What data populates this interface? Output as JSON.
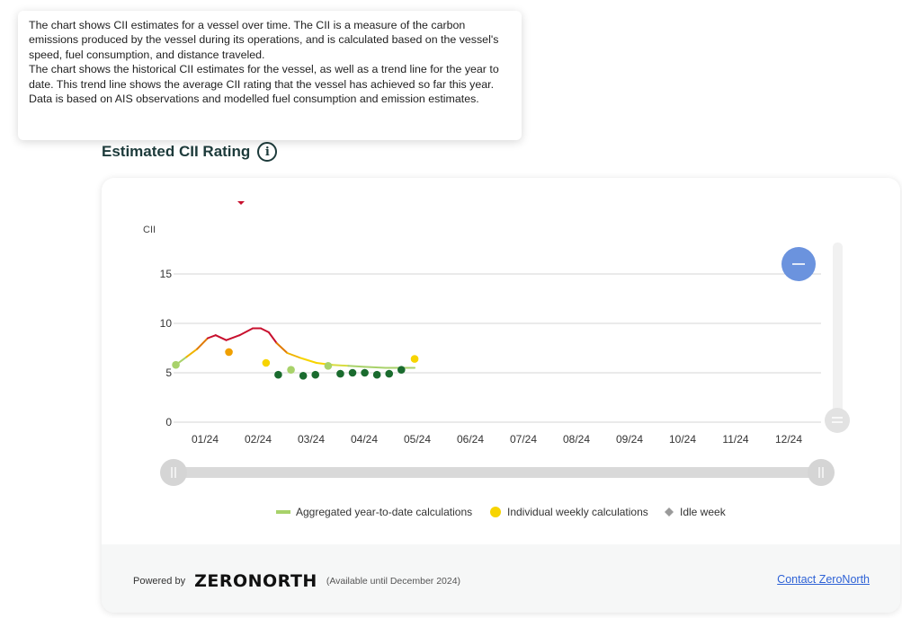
{
  "tooltip": {
    "para1": "The chart shows CII estimates for a vessel over time. The CII is a measure of the carbon emissions produced by the vessel during its operations, and is calculated based on the vessel's speed, fuel consumption, and distance traveled.",
    "para2": "The chart shows the historical CII estimates for the vessel, as well as a trend line for the year to date. This trend line shows the average CII rating that the vessel has achieved so far this year. Data is based on AIS observations and modelled fuel consumption and emission estimates."
  },
  "header": {
    "title": "Estimated CII Rating",
    "info_icon": "info-circle-icon"
  },
  "chart_data": {
    "type": "line",
    "ylabel": "CII",
    "ylim": [
      0,
      17
    ],
    "yticks": [
      0,
      5,
      10,
      15
    ],
    "xlim": [
      0.5,
      12.5
    ],
    "x_tick_labels": [
      "01/24",
      "02/24",
      "03/24",
      "04/24",
      "05/24",
      "06/24",
      "07/24",
      "08/24",
      "09/24",
      "10/24",
      "11/24",
      "12/24"
    ],
    "grid": true,
    "legend_position": "bottom",
    "legend": [
      {
        "label": "Aggregated year-to-date calculations",
        "marker": "line",
        "color": "#a8d26a"
      },
      {
        "label": "Individual weekly calculations",
        "marker": "circle",
        "color": "#f7d400"
      },
      {
        "label": "Idle week",
        "marker": "diamond",
        "color": "#9a9a9a"
      }
    ],
    "series": [
      {
        "type": "line",
        "points": [
          {
            "x": 0.45,
            "y": 5.8,
            "color": "#a8d26a"
          },
          {
            "x": 0.65,
            "y": 6.6,
            "color": "#f0b400"
          },
          {
            "x": 0.85,
            "y": 7.4,
            "color": "#e07a00"
          },
          {
            "x": 1.05,
            "y": 8.5,
            "color": "#c8102e"
          },
          {
            "x": 1.2,
            "y": 8.8,
            "color": "#c8102e"
          },
          {
            "x": 1.4,
            "y": 8.3,
            "color": "#c8102e"
          },
          {
            "x": 1.65,
            "y": 8.8,
            "color": "#c8102e"
          },
          {
            "x": 1.9,
            "y": 9.5,
            "color": "#c8102e"
          },
          {
            "x": 2.05,
            "y": 9.5,
            "color": "#c8102e"
          },
          {
            "x": 2.2,
            "y": 9.1,
            "color": "#c8102e"
          },
          {
            "x": 2.35,
            "y": 8.0,
            "color": "#e07a00"
          },
          {
            "x": 2.55,
            "y": 7.0,
            "color": "#f0b400"
          },
          {
            "x": 2.8,
            "y": 6.5,
            "color": "#f7d400"
          },
          {
            "x": 3.1,
            "y": 6.0,
            "color": "#f7d400"
          },
          {
            "x": 3.4,
            "y": 5.8,
            "color": "#d8dc40"
          },
          {
            "x": 3.7,
            "y": 5.7,
            "color": "#a8d26a"
          },
          {
            "x": 4.0,
            "y": 5.6,
            "color": "#a8d26a"
          },
          {
            "x": 4.4,
            "y": 5.5,
            "color": "#a8d26a"
          },
          {
            "x": 4.7,
            "y": 5.5,
            "color": "#a8d26a"
          },
          {
            "x": 4.95,
            "y": 5.5,
            "color": "#a8d26a"
          }
        ]
      },
      {
        "type": "scatter",
        "points": [
          {
            "x": 0.45,
            "y": 5.8,
            "color": "#a8d26a"
          },
          {
            "x": 1.45,
            "y": 7.1,
            "color": "#f0a000"
          },
          {
            "x": 2.15,
            "y": 6.0,
            "color": "#f7d400"
          },
          {
            "x": 2.38,
            "y": 4.8,
            "color": "#1a6b2e"
          },
          {
            "x": 2.62,
            "y": 5.3,
            "color": "#a8d26a"
          },
          {
            "x": 2.85,
            "y": 4.7,
            "color": "#1a6b2e"
          },
          {
            "x": 3.08,
            "y": 4.8,
            "color": "#1a6b2e"
          },
          {
            "x": 3.32,
            "y": 5.7,
            "color": "#a8d26a"
          },
          {
            "x": 3.55,
            "y": 4.9,
            "color": "#1a6b2e"
          },
          {
            "x": 3.78,
            "y": 5.0,
            "color": "#1a6b2e"
          },
          {
            "x": 4.01,
            "y": 5.0,
            "color": "#1a6b2e"
          },
          {
            "x": 4.24,
            "y": 4.8,
            "color": "#1a6b2e"
          },
          {
            "x": 4.47,
            "y": 4.9,
            "color": "#1a6b2e"
          },
          {
            "x": 4.7,
            "y": 5.3,
            "color": "#1a6b2e"
          },
          {
            "x": 4.95,
            "y": 6.4,
            "color": "#f7d400"
          }
        ]
      }
    ]
  },
  "controls": {
    "zoom_button_icon": "minus-icon",
    "vertical_handle_icon": "equals-icon",
    "range_left_handle_icon": "grip-icon",
    "range_right_handle_icon": "grip-icon"
  },
  "footer": {
    "powered_by": "Powered by",
    "brand": "ZERONORTH",
    "availability": "(Available until December 2024)",
    "contact_link": "Contact ZeroNorth"
  }
}
